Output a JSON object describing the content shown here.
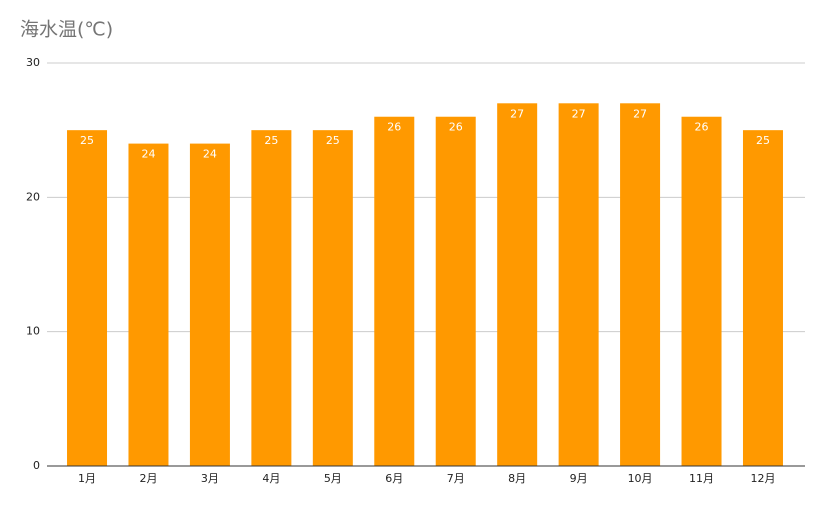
{
  "chart_data": {
    "type": "bar",
    "title": "海水温(℃)",
    "categories": [
      "1月",
      "2月",
      "3月",
      "4月",
      "5月",
      "6月",
      "7月",
      "8月",
      "9月",
      "10月",
      "11月",
      "12月"
    ],
    "values": [
      25,
      24,
      24,
      25,
      25,
      26,
      26,
      27,
      27,
      27,
      26,
      25
    ],
    "color": "#ff9900",
    "ylim": [
      0,
      30
    ],
    "yticks": [
      0,
      10,
      20,
      30
    ],
    "grid": true
  }
}
